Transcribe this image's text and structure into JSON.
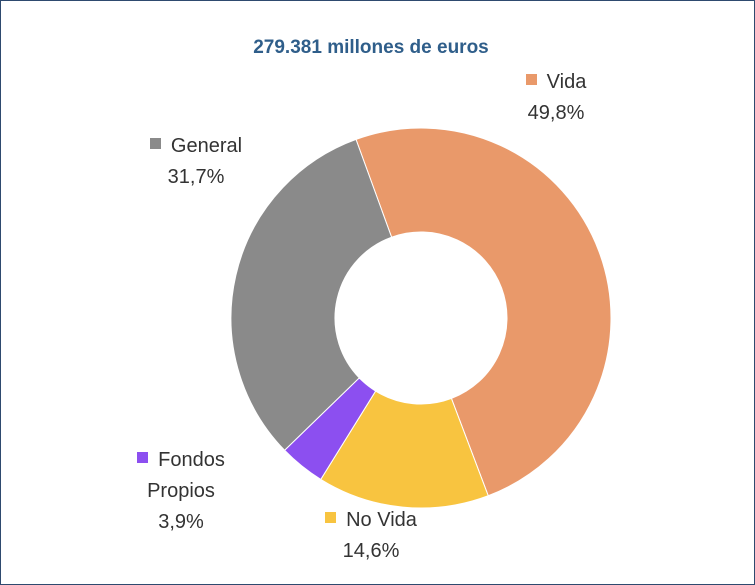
{
  "chart_data": {
    "type": "donut",
    "title": "279.381 millones de euros",
    "categories": [
      "Vida",
      "No Vida",
      "Fondos Propios",
      "General"
    ],
    "values": [
      49.8,
      14.6,
      3.9,
      31.7
    ],
    "value_labels": [
      "49,8%",
      "14,6%",
      "3,9%",
      "31,7%"
    ],
    "colors": [
      "#e9996a",
      "#f8c440",
      "#8c4ff0",
      "#8a8a8a"
    ]
  }
}
